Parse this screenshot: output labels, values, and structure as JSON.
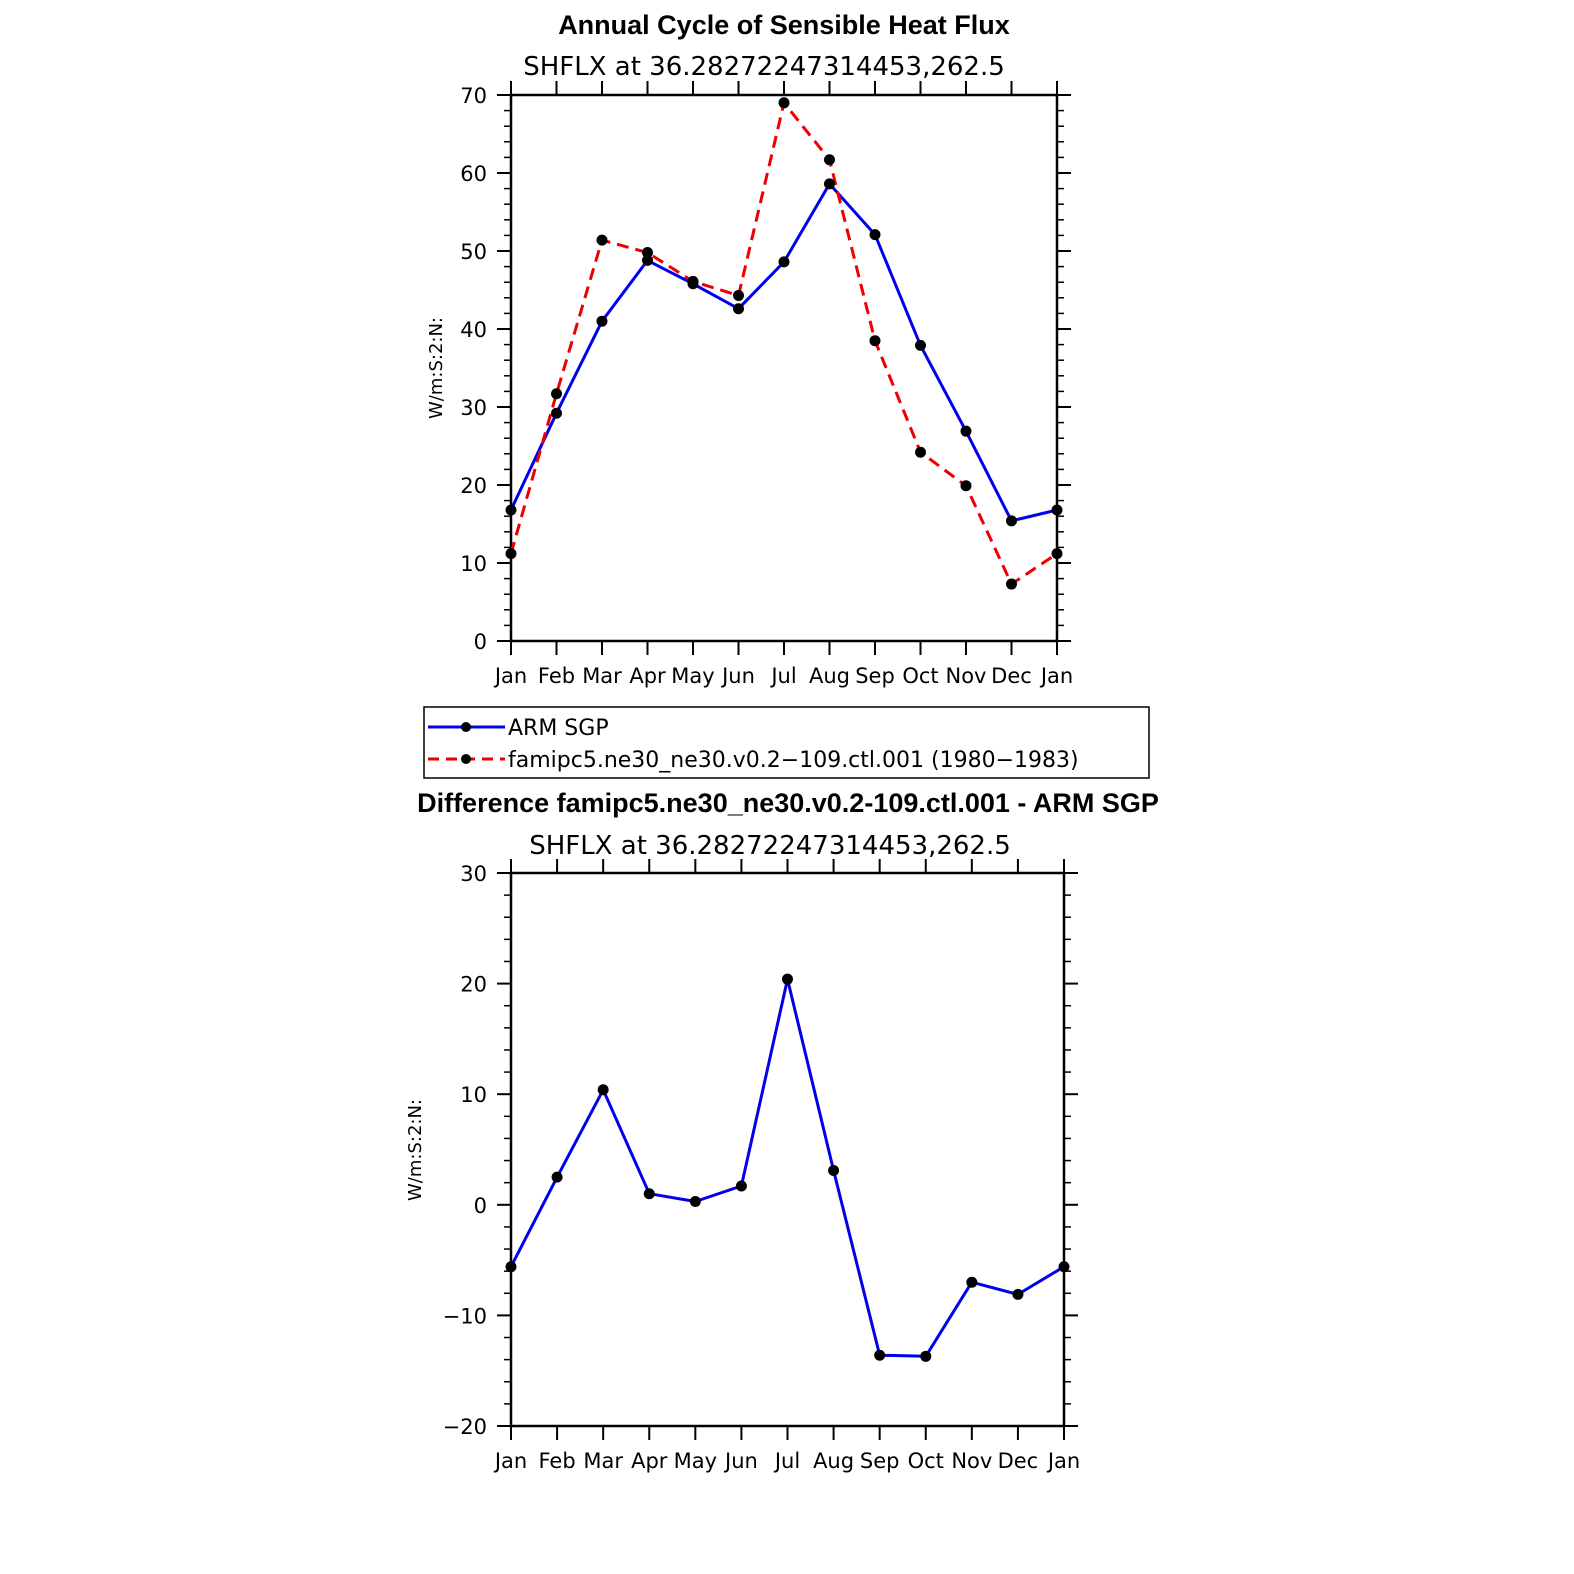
{
  "colors": {
    "obs": "#0000ee",
    "model": "#ee0000",
    "diff": "#0000ee",
    "marker": "#000000"
  },
  "chart_data": [
    {
      "type": "line",
      "title": "Annual Cycle of Sensible Heat Flux",
      "subtitle": "SHFLX at 36.28272247314453,262.5",
      "xlabel": "",
      "ylabel": "W/m:S:2:N:",
      "categories": [
        "Jan",
        "Feb",
        "Mar",
        "Apr",
        "May",
        "Jun",
        "Jul",
        "Aug",
        "Sep",
        "Oct",
        "Nov",
        "Dec",
        "Jan"
      ],
      "ylim": [
        0,
        70
      ],
      "yticks": [
        0,
        10,
        20,
        30,
        40,
        50,
        60,
        70
      ],
      "ytick_labels": [
        "0",
        "10",
        "20",
        "30",
        "40",
        "50",
        "60",
        "70"
      ],
      "series": [
        {
          "name": "ARM SGP",
          "style": "solid",
          "values": [
            16.8,
            29.2,
            41.0,
            48.8,
            45.8,
            42.6,
            48.6,
            58.6,
            52.1,
            37.9,
            26.9,
            15.4,
            16.8
          ]
        },
        {
          "name": "famipc5.ne30_ne30.v0.2−109.ctl.001 (1980−1983)",
          "style": "dashed",
          "values": [
            11.2,
            31.7,
            51.4,
            49.8,
            46.1,
            44.3,
            69.0,
            61.7,
            38.5,
            24.2,
            19.9,
            7.3,
            11.2
          ]
        }
      ]
    },
    {
      "type": "line",
      "title": "Difference famipc5.ne30_ne30.v0.2-109.ctl.001 - ARM SGP",
      "subtitle": "SHFLX at 36.28272247314453,262.5",
      "xlabel": "",
      "ylabel": "W/m:S:2:N:",
      "categories": [
        "Jan",
        "Feb",
        "Mar",
        "Apr",
        "May",
        "Jun",
        "Jul",
        "Aug",
        "Sep",
        "Oct",
        "Nov",
        "Dec",
        "Jan"
      ],
      "ylim": [
        -20,
        30
      ],
      "yticks": [
        -20,
        -10,
        0,
        10,
        20,
        30
      ],
      "ytick_labels": [
        "−20",
        "−10",
        "0",
        "10",
        "20",
        "30"
      ],
      "series": [
        {
          "style": "solid",
          "values": [
            -5.6,
            2.5,
            10.4,
            1.0,
            0.3,
            1.7,
            20.4,
            3.1,
            -13.6,
            -13.7,
            -7.0,
            -8.1,
            -5.6
          ]
        }
      ]
    }
  ]
}
